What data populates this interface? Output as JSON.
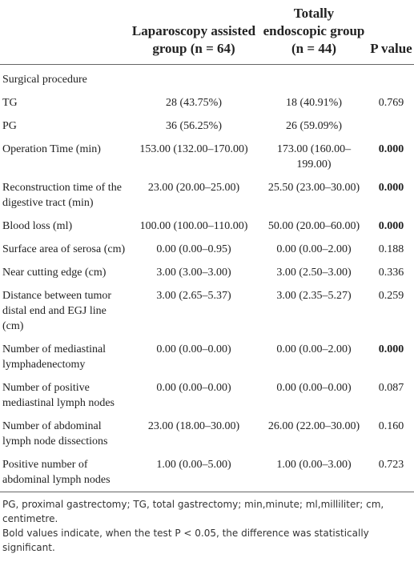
{
  "table": {
    "header": [
      "Laparoscopy assisted group (n = 64)",
      "Totally endoscopic group (n = 44)",
      "P value"
    ],
    "rows": [
      {
        "cells": [
          "Surgical procedure"
        ]
      },
      {
        "cells": [
          "TG",
          "28 (43.75%)",
          "18 (40.91%)",
          "0.769"
        ]
      },
      {
        "cells": [
          "PG",
          "36 (56.25%)",
          "26 (59.09%)"
        ]
      },
      {
        "cells": [
          "Operation Time (min)",
          "153.00 (132.00–170.00)",
          "173.00 (160.00–199.00)",
          "0.000"
        ],
        "bold": true
      },
      {
        "cells": [
          "Reconstruction time of the digestive tract (min)",
          "23.00 (20.00–25.00)",
          "25.50 (23.00–30.00)",
          "0.000"
        ],
        "bold": true
      },
      {
        "cells": [
          "Blood loss (ml)",
          "100.00 (100.00–110.00)",
          "50.00 (20.00–60.00)",
          "0.000"
        ],
        "bold": true
      },
      {
        "cells": [
          "Surface area of serosa (cm)",
          "0.00 (0.00–0.95)",
          "0.00 (0.00–2.00)",
          "0.188"
        ]
      },
      {
        "cells": [
          "Near cutting edge (cm)",
          "3.00 (3.00–3.00)",
          "3.00 (2.50–3.00)",
          "0.336"
        ]
      },
      {
        "cells": [
          "Distance between tumor distal end and EGJ line (cm)",
          "3.00 (2.65–5.37)",
          "3.00 (2.35–5.27)",
          "0.259"
        ]
      },
      {
        "cells": [
          "Number of mediastinal lymphadenectomy",
          "0.00 (0.00–0.00)",
          "0.00 (0.00–2.00)",
          "0.000"
        ],
        "bold": true
      },
      {
        "cells": [
          "Number of positive mediastinal lymph nodes",
          "0.00 (0.00–0.00)",
          "0.00 (0.00–0.00)",
          "0.087"
        ]
      },
      {
        "cells": [
          "Number of abdominal lymph node dissections",
          "23.00 (18.00–30.00)",
          "26.00 (22.00–30.00)",
          "0.160"
        ]
      },
      {
        "cells": [
          "Positive number of abdominal lymph nodes",
          "1.00 (0.00–5.00)",
          "1.00 (0.00–3.00)",
          "0.723"
        ]
      }
    ],
    "footnotes": [
      "PG, proximal gastrectomy; TG, total gastrectomy; min,minute; ml,milliliter; cm, centimetre.",
      "Bold values indicate, when the test P < 0.05, the difference was statistically significant."
    ]
  }
}
